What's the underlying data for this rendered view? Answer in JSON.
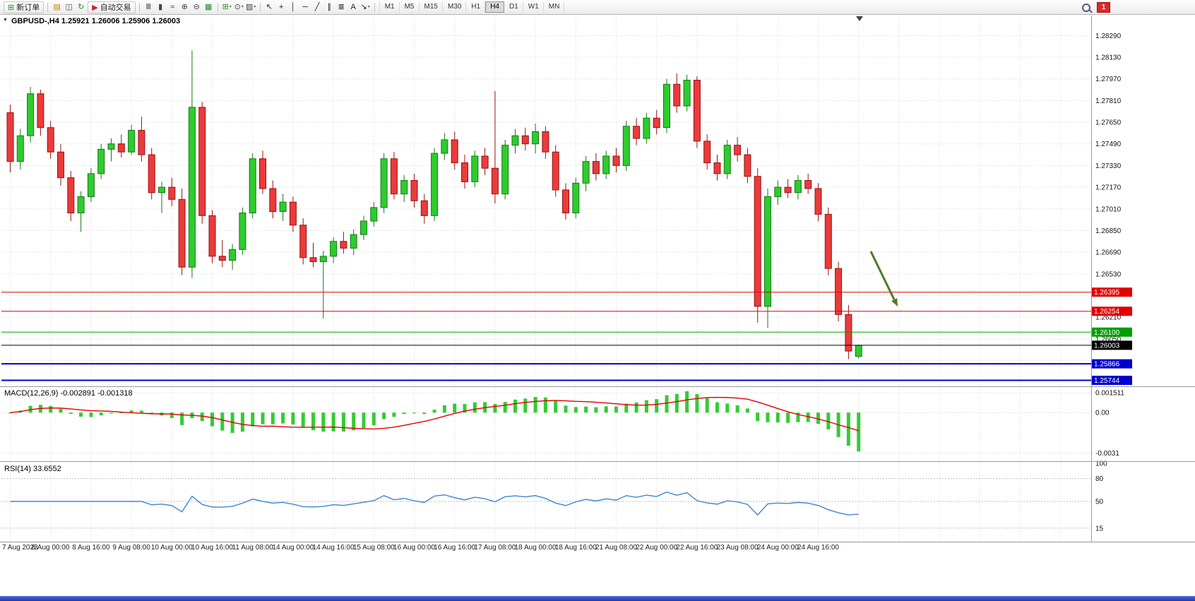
{
  "toolbar": {
    "new_order_label": "新订单",
    "autotrading_label": "自动交易",
    "notification_badge": "1",
    "timeframes": [
      "M1",
      "M5",
      "M15",
      "M30",
      "H1",
      "H4",
      "D1",
      "W1",
      "MN"
    ],
    "active_timeframe": "H4",
    "icon_groups": {
      "view": [
        {
          "name": "charts-icon",
          "glyph": "▤",
          "color": "#b8860b"
        },
        {
          "name": "profile-icon",
          "glyph": "◫",
          "color": "#555555"
        },
        {
          "name": "refresh-icon",
          "glyph": "↻",
          "color": "#2e8b2e"
        }
      ],
      "chart": [
        {
          "name": "bar-chart-icon",
          "glyph": "Ⅲ",
          "color": "#444444"
        },
        {
          "name": "candlestick-chart-icon",
          "glyph": "▮",
          "color": "#444444"
        },
        {
          "name": "line-chart-icon",
          "glyph": "≈",
          "color": "#444444"
        },
        {
          "name": "zoom-in-icon",
          "glyph": "⊕",
          "color": "#444444"
        },
        {
          "name": "zoom-out-icon",
          "glyph": "⊖",
          "color": "#444444"
        },
        {
          "name": "tile-windows-icon",
          "glyph": "▦",
          "color": "#2e8b2e"
        }
      ],
      "tools": [
        {
          "name": "add-indicator-icon",
          "glyph": "⊞",
          "color": "#2e8b2e",
          "caret": true
        },
        {
          "name": "periods-icon",
          "glyph": "⊙",
          "color": "#444444",
          "caret": true
        },
        {
          "name": "templates-icon",
          "glyph": "▨",
          "color": "#444444",
          "caret": true
        }
      ],
      "lines": [
        {
          "name": "cursor-icon",
          "glyph": "↖",
          "color": "#222222"
        },
        {
          "name": "crosshair-icon",
          "glyph": "+",
          "color": "#222222"
        },
        {
          "name": "vertical-line-icon",
          "glyph": "│",
          "color": "#222222"
        },
        {
          "name": "horizontal-line-icon",
          "glyph": "─",
          "color": "#222222"
        },
        {
          "name": "trendline-icon",
          "glyph": "╱",
          "color": "#222222"
        },
        {
          "name": "channel-icon",
          "glyph": "∥",
          "color": "#222222"
        },
        {
          "name": "fibonacci-icon",
          "glyph": "≣",
          "color": "#222222"
        },
        {
          "name": "text-icon",
          "glyph": "A",
          "color": "#222222"
        },
        {
          "name": "arrows-icon",
          "glyph": "↘",
          "color": "#222222",
          "caret": true
        }
      ]
    }
  },
  "chart": {
    "title": "GBPUSD-,H4 1.25921 1.26006 1.25906 1.26003",
    "price_ticks": [
      "1.28290",
      "1.28130",
      "1.27970",
      "1.27810",
      "1.27650",
      "1.27490",
      "1.27330",
      "1.27170",
      "1.27010",
      "1.26850",
      "1.26690",
      "1.26530",
      "1.26210",
      "1.26050"
    ],
    "levels": [
      {
        "price": "1.26395",
        "color": "#e10000",
        "width": 1
      },
      {
        "price": "1.26254",
        "color": "#e10000",
        "width": 1
      },
      {
        "price": "1.26100",
        "color": "#00a000",
        "width": 1
      },
      {
        "price": "1.26003",
        "color": "#000000",
        "width": 1,
        "current": true
      },
      {
        "price": "1.25866",
        "color": "#0000cd",
        "width": 2
      },
      {
        "price": "1.25744",
        "color": "#0000cd",
        "width": 2
      }
    ]
  },
  "indicators": {
    "macd": {
      "label": "MACD(12,26,9) -0.002891 -0.001318",
      "params": "12,26,9",
      "main_value": "-0.002891",
      "signal_value": "-0.001318",
      "axis_labels": [
        "0.001511",
        "0.00",
        "-0.0031"
      ]
    },
    "rsi": {
      "label": "RSI(14) 33.6552",
      "params": "14",
      "value": "33.6552",
      "axis_labels": [
        "100",
        "80",
        "50",
        "15"
      ],
      "level_lines": [
        80,
        50,
        15
      ]
    }
  },
  "annotation": {
    "type": "down-right-arrow",
    "color": "#4e7a28"
  },
  "colors": {
    "bull": "#2ecc2e",
    "bull_border": "#157815",
    "bear": "#ea3b3b",
    "bear_border": "#991111",
    "macd_hist": "#33cc33",
    "macd_signal": "#e00000",
    "rsi_line": "#3f86d2",
    "level_red": "#e10000",
    "level_green": "#00a000",
    "level_blue": "#0000cd",
    "current_price_tag": "#000000"
  },
  "chart_data": {
    "type": "candlestick",
    "symbol": "GBPUSD-",
    "timeframe": "H4",
    "current_bar": {
      "open": "1.25921",
      "high": "1.26006",
      "low": "1.25906",
      "close": "1.26003"
    },
    "time_labels": [
      "7 Aug 2023",
      "8 Aug 00:00",
      "8 Aug 16:00",
      "9 Aug 08:00",
      "10 Aug 00:00",
      "10 Aug 16:00",
      "11 Aug 08:00",
      "14 Aug 00:00",
      "14 Aug 16:00",
      "15 Aug 08:00",
      "16 Aug 00:00",
      "16 Aug 16:00",
      "17 Aug 08:00",
      "18 Aug 00:00",
      "18 Aug 16:00",
      "21 Aug 08:00",
      "22 Aug 00:00",
      "22 Aug 16:00",
      "23 Aug 08:00",
      "24 Aug 00:00",
      "24 Aug 16:00"
    ],
    "candles": [
      [
        1.2772,
        1.2778,
        1.2728,
        1.2736
      ],
      [
        1.2736,
        1.276,
        1.273,
        1.2755
      ],
      [
        1.2755,
        1.2791,
        1.275,
        1.2786
      ],
      [
        1.2786,
        1.2789,
        1.2755,
        1.2761
      ],
      [
        1.2761,
        1.2766,
        1.2738,
        1.2743
      ],
      [
        1.2743,
        1.2749,
        1.2718,
        1.2724
      ],
      [
        1.2724,
        1.2729,
        1.2692,
        1.2698
      ],
      [
        1.2698,
        1.2714,
        1.2684,
        1.271
      ],
      [
        1.271,
        1.2731,
        1.2706,
        1.2727
      ],
      [
        1.2727,
        1.2749,
        1.2723,
        1.2745
      ],
      [
        1.2745,
        1.2753,
        1.2736,
        1.2749
      ],
      [
        1.2749,
        1.2756,
        1.2739,
        1.2743
      ],
      [
        1.2743,
        1.2763,
        1.2741,
        1.2759
      ],
      [
        1.2759,
        1.2769,
        1.2736,
        1.2741
      ],
      [
        1.2741,
        1.2746,
        1.2708,
        1.2713
      ],
      [
        1.2713,
        1.2721,
        1.2698,
        1.2717
      ],
      [
        1.2717,
        1.2724,
        1.2703,
        1.2708
      ],
      [
        1.2708,
        1.2716,
        1.2652,
        1.2658
      ],
      [
        1.2658,
        1.2818,
        1.265,
        1.2776
      ],
      [
        1.2776,
        1.278,
        1.269,
        1.2696
      ],
      [
        1.2696,
        1.27,
        1.2661,
        1.2666
      ],
      [
        1.2666,
        1.2678,
        1.2658,
        1.2663
      ],
      [
        1.2663,
        1.2675,
        1.2656,
        1.2671
      ],
      [
        1.2671,
        1.2702,
        1.2667,
        1.2698
      ],
      [
        1.2698,
        1.2742,
        1.2694,
        1.2738
      ],
      [
        1.2738,
        1.2744,
        1.2712,
        1.2716
      ],
      [
        1.2716,
        1.2722,
        1.2694,
        1.2699
      ],
      [
        1.2699,
        1.2712,
        1.2692,
        1.2706
      ],
      [
        1.2706,
        1.271,
        1.2684,
        1.2689
      ],
      [
        1.2689,
        1.2694,
        1.266,
        1.2665
      ],
      [
        1.2665,
        1.2676,
        1.2658,
        1.2662
      ],
      [
        1.2662,
        1.267,
        1.262,
        1.2666
      ],
      [
        1.2666,
        1.268,
        1.2661,
        1.2677
      ],
      [
        1.2677,
        1.2684,
        1.2668,
        1.2672
      ],
      [
        1.2672,
        1.2686,
        1.2667,
        1.2682
      ],
      [
        1.2682,
        1.2696,
        1.2678,
        1.2692
      ],
      [
        1.2692,
        1.2706,
        1.2688,
        1.2702
      ],
      [
        1.2702,
        1.2742,
        1.2698,
        1.2738
      ],
      [
        1.2738,
        1.2743,
        1.2708,
        1.2712
      ],
      [
        1.2712,
        1.2726,
        1.2706,
        1.2722
      ],
      [
        1.2722,
        1.2727,
        1.2702,
        1.2707
      ],
      [
        1.2707,
        1.2712,
        1.269,
        1.2696
      ],
      [
        1.2696,
        1.2746,
        1.2692,
        1.2742
      ],
      [
        1.2742,
        1.2757,
        1.2737,
        1.2752
      ],
      [
        1.2752,
        1.2758,
        1.273,
        1.2735
      ],
      [
        1.2735,
        1.2741,
        1.2716,
        1.2721
      ],
      [
        1.2721,
        1.2744,
        1.2717,
        1.274
      ],
      [
        1.274,
        1.2746,
        1.2726,
        1.2731
      ],
      [
        1.2731,
        1.2788,
        1.2705,
        1.2712
      ],
      [
        1.2712,
        1.2752,
        1.2708,
        1.2748
      ],
      [
        1.2748,
        1.276,
        1.2742,
        1.2755
      ],
      [
        1.2755,
        1.2761,
        1.2744,
        1.2749
      ],
      [
        1.2749,
        1.2764,
        1.2742,
        1.2758
      ],
      [
        1.2758,
        1.2762,
        1.2738,
        1.2743
      ],
      [
        1.2743,
        1.2748,
        1.271,
        1.2715
      ],
      [
        1.2715,
        1.272,
        1.2693,
        1.2698
      ],
      [
        1.2698,
        1.2724,
        1.2694,
        1.272
      ],
      [
        1.272,
        1.274,
        1.2714,
        1.2736
      ],
      [
        1.2736,
        1.2742,
        1.2722,
        1.2727
      ],
      [
        1.2727,
        1.2744,
        1.2723,
        1.274
      ],
      [
        1.274,
        1.2746,
        1.2728,
        1.2733
      ],
      [
        1.2733,
        1.2766,
        1.2729,
        1.2762
      ],
      [
        1.2762,
        1.2768,
        1.2748,
        1.2753
      ],
      [
        1.2753,
        1.2772,
        1.2749,
        1.2768
      ],
      [
        1.2768,
        1.2774,
        1.2756,
        1.2761
      ],
      [
        1.2761,
        1.2797,
        1.2757,
        1.2793
      ],
      [
        1.2793,
        1.2801,
        1.2772,
        1.2777
      ],
      [
        1.2777,
        1.28,
        1.2773,
        1.2796
      ],
      [
        1.2796,
        1.2799,
        1.2746,
        1.2751
      ],
      [
        1.2751,
        1.2756,
        1.273,
        1.2735
      ],
      [
        1.2735,
        1.2741,
        1.2722,
        1.2727
      ],
      [
        1.2727,
        1.2752,
        1.2723,
        1.2748
      ],
      [
        1.2748,
        1.2754,
        1.2736,
        1.2741
      ],
      [
        1.2741,
        1.2746,
        1.272,
        1.2725
      ],
      [
        1.2725,
        1.2731,
        1.2617,
        1.2629
      ],
      [
        1.2629,
        1.2716,
        1.2613,
        1.271
      ],
      [
        1.271,
        1.2722,
        1.2704,
        1.2717
      ],
      [
        1.2717,
        1.2723,
        1.2709,
        1.2713
      ],
      [
        1.2713,
        1.2726,
        1.2708,
        1.2722
      ],
      [
        1.2722,
        1.2727,
        1.2712,
        1.2716
      ],
      [
        1.2716,
        1.272,
        1.2692,
        1.2697
      ],
      [
        1.2697,
        1.2702,
        1.2652,
        1.2657
      ],
      [
        1.2657,
        1.2662,
        1.2618,
        1.2623
      ],
      [
        1.2623,
        1.263,
        1.259,
        1.2596
      ],
      [
        1.25921,
        1.26006,
        1.25906,
        1.26003
      ]
    ]
  }
}
